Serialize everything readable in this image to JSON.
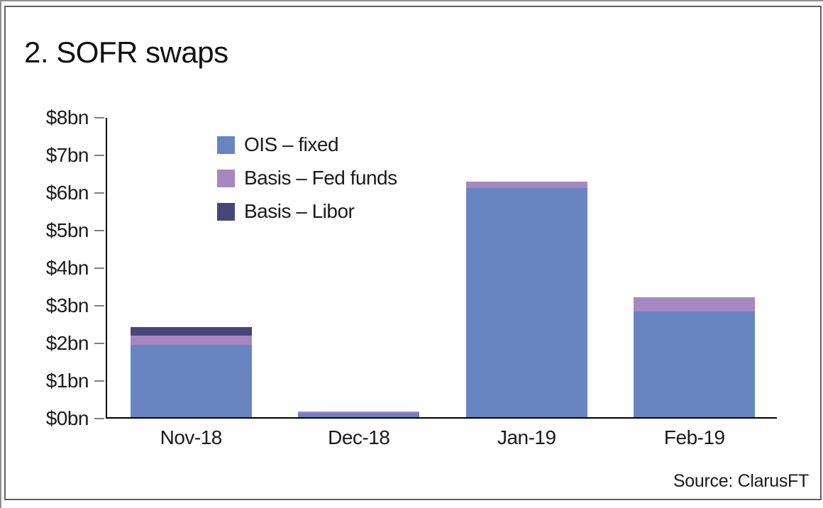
{
  "title": "2. SOFR swaps",
  "source": "Source: ClarusFT",
  "chart_data": {
    "type": "bar",
    "stacked": true,
    "title": "2. SOFR swaps",
    "categories": [
      "Nov-18",
      "Dec-18",
      "Jan-19",
      "Feb-19"
    ],
    "series": [
      {
        "name": "OIS – fixed",
        "color": "#6885c2",
        "values": [
          1.92,
          0.11,
          6.09,
          2.81
        ]
      },
      {
        "name": "Basis – Fed funds",
        "color": "#a787bf",
        "values": [
          0.25,
          0.04,
          0.17,
          0.37
        ]
      },
      {
        "name": "Basis – Libor",
        "color": "#474679",
        "values": [
          0.23,
          0.0,
          0.0,
          0.0
        ]
      }
    ],
    "totals": [
      2.4,
      0.15,
      6.26,
      3.18
    ],
    "ylim": [
      0,
      8
    ],
    "ytick_labels": [
      "$0bn",
      "$1bn",
      "$2bn",
      "$3bn",
      "$4bn",
      "$5bn",
      "$6bn",
      "$7bn",
      "$8bn"
    ],
    "grid": false,
    "legend_position": "inside-top-left",
    "source": "Source: ClarusFT",
    "colors": {
      "axis": "#000000",
      "tick": "#808080",
      "frame_border": "#616161",
      "text": "#1a1a1a"
    }
  }
}
